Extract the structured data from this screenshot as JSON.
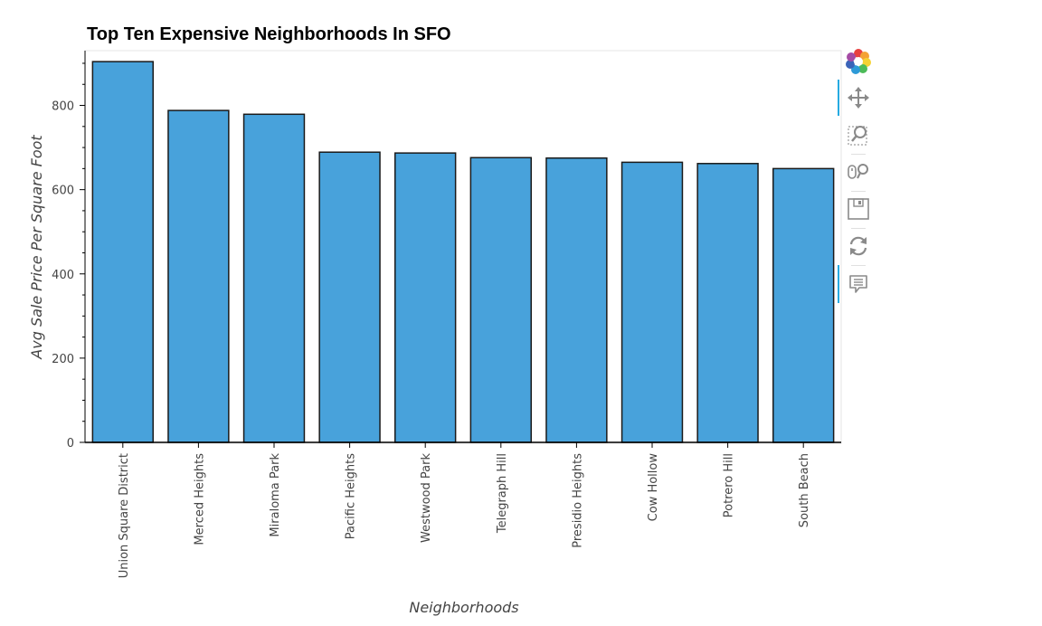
{
  "chart_data": {
    "type": "bar",
    "title": "Top Ten Expensive Neighborhoods In SFO",
    "xlabel": "Neighborhoods",
    "ylabel": "Avg Sale Price Per Square Foot",
    "categories": [
      "Union Square District",
      "Merced Heights",
      "Miraloma Park",
      "Pacific Heights",
      "Westwood Park",
      "Telegraph Hill",
      "Presidio Heights",
      "Cow Hollow",
      "Potrero Hill",
      "South Beach"
    ],
    "values": [
      904,
      788,
      779,
      689,
      687,
      676,
      675,
      665,
      662,
      650
    ],
    "ylim": [
      0,
      930
    ],
    "yticks": [
      0,
      200,
      400,
      600,
      800
    ],
    "ytick_labels": [
      "0",
      "200",
      "400",
      "600",
      "800"
    ],
    "bar_color": "#48a2db",
    "bar_edge_color": "#1a1a1a",
    "grid": false
  },
  "toolbar": {
    "tools": [
      {
        "name": "bokeh-logo-icon",
        "interactable": false
      },
      {
        "name": "pan-tool-icon",
        "interactable": true,
        "active": true
      },
      {
        "name": "box-zoom-tool-icon",
        "interactable": true
      },
      {
        "name": "wheel-zoom-tool-icon",
        "interactable": true
      },
      {
        "name": "save-tool-icon",
        "interactable": true
      },
      {
        "name": "reset-tool-icon",
        "interactable": true
      },
      {
        "name": "hover-tool-icon",
        "interactable": true,
        "active": true
      }
    ]
  }
}
